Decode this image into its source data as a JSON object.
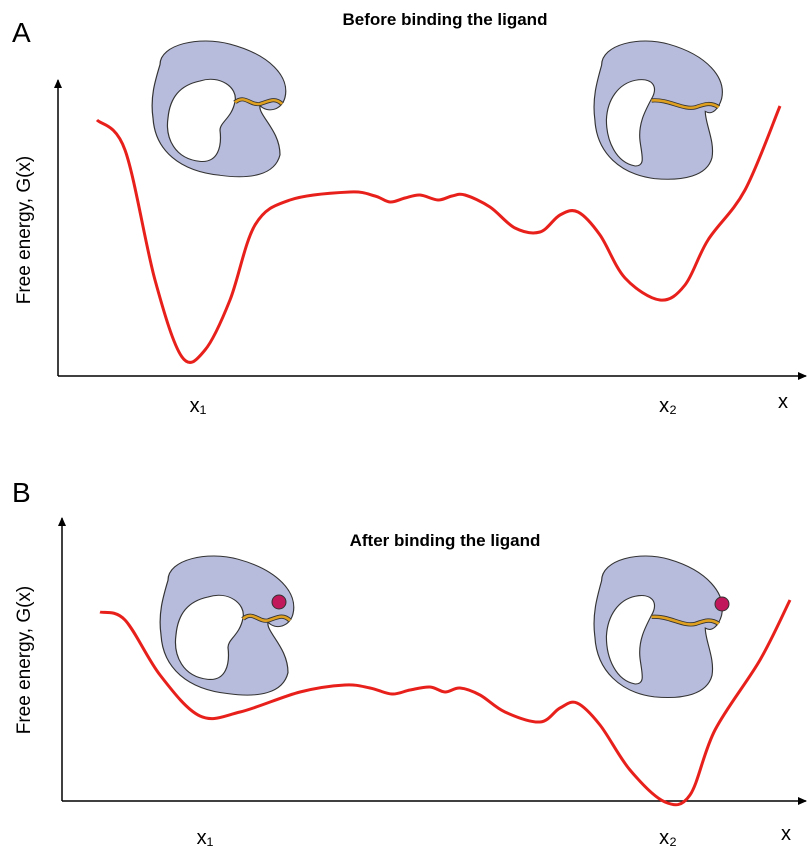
{
  "panels": [
    {
      "label": "A",
      "title": "Before binding the ligand",
      "y_axis_label": "Free energy, G(x)",
      "x_ticks": [
        "x₁",
        "x₂"
      ],
      "x_axis_label": "x"
    },
    {
      "label": "B",
      "title": "After binding the ligand",
      "y_axis_label": "Free energy, G(x)",
      "x_ticks": [
        "x₁",
        "x₂"
      ],
      "x_axis_label": "x"
    }
  ]
}
